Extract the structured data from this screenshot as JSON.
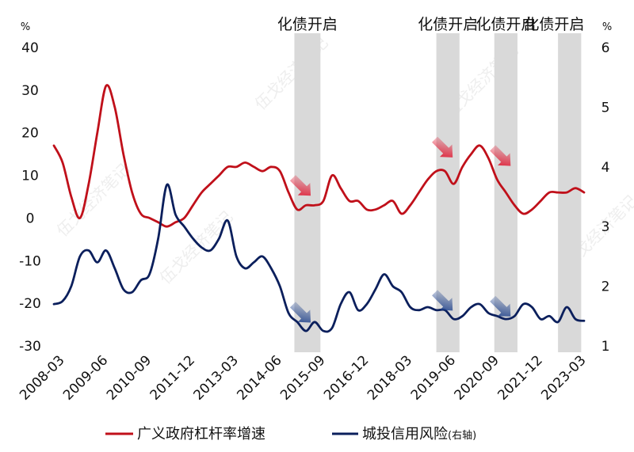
{
  "chart_data": {
    "type": "line",
    "left_axis": {
      "unit": "%",
      "ylim": [
        -30,
        40
      ],
      "ticks": [
        40,
        30,
        20,
        10,
        0,
        -10,
        -20,
        -30
      ]
    },
    "right_axis": {
      "unit": "%",
      "ylim": [
        1,
        6
      ],
      "ticks": [
        6,
        5,
        4,
        3,
        2,
        1
      ]
    },
    "x_ticks": [
      "2008-03",
      "2009-06",
      "2010-09",
      "2011-12",
      "2013-03",
      "2014-06",
      "2015-09",
      "2016-12",
      "2018-03",
      "2019-06",
      "2020-09",
      "2021-12",
      "2023-03"
    ],
    "x_range": [
      "2008-03",
      "2023-09"
    ],
    "series": [
      {
        "name": "广义政府杠杆率增速",
        "axis": "left",
        "color": "#c0101a",
        "points": [
          [
            "2008-03",
            17
          ],
          [
            "2008-06",
            13
          ],
          [
            "2008-09",
            5
          ],
          [
            "2008-12",
            0
          ],
          [
            "2009-03",
            8
          ],
          [
            "2009-06",
            20
          ],
          [
            "2009-09",
            31
          ],
          [
            "2009-12",
            26
          ],
          [
            "2010-03",
            15
          ],
          [
            "2010-06",
            6
          ],
          [
            "2010-09",
            1
          ],
          [
            "2010-12",
            0
          ],
          [
            "2011-03",
            -1
          ],
          [
            "2011-06",
            -2
          ],
          [
            "2011-09",
            -1
          ],
          [
            "2011-12",
            0
          ],
          [
            "2012-03",
            3
          ],
          [
            "2012-06",
            6
          ],
          [
            "2012-09",
            8
          ],
          [
            "2012-12",
            10
          ],
          [
            "2013-03",
            12
          ],
          [
            "2013-06",
            12
          ],
          [
            "2013-09",
            13
          ],
          [
            "2013-12",
            12
          ],
          [
            "2014-03",
            11
          ],
          [
            "2014-06",
            12
          ],
          [
            "2014-09",
            11
          ],
          [
            "2014-12",
            6
          ],
          [
            "2015-03",
            2
          ],
          [
            "2015-06",
            3
          ],
          [
            "2015-09",
            3
          ],
          [
            "2015-12",
            4
          ],
          [
            "2016-03",
            10
          ],
          [
            "2016-06",
            7
          ],
          [
            "2016-09",
            4
          ],
          [
            "2016-12",
            4
          ],
          [
            "2017-03",
            2
          ],
          [
            "2017-06",
            2
          ],
          [
            "2017-09",
            3
          ],
          [
            "2017-12",
            4
          ],
          [
            "2018-03",
            1
          ],
          [
            "2018-06",
            3
          ],
          [
            "2018-09",
            6
          ],
          [
            "2018-12",
            9
          ],
          [
            "2019-03",
            11
          ],
          [
            "2019-06",
            11
          ],
          [
            "2019-09",
            8
          ],
          [
            "2019-12",
            12
          ],
          [
            "2020-03",
            15
          ],
          [
            "2020-06",
            17
          ],
          [
            "2020-09",
            14
          ],
          [
            "2020-12",
            9
          ],
          [
            "2021-03",
            6
          ],
          [
            "2021-06",
            3
          ],
          [
            "2021-09",
            1
          ],
          [
            "2021-12",
            2
          ],
          [
            "2022-03",
            4
          ],
          [
            "2022-06",
            6
          ],
          [
            "2022-09",
            6
          ],
          [
            "2022-12",
            6
          ],
          [
            "2023-03",
            7
          ],
          [
            "2023-06",
            6
          ]
        ]
      },
      {
        "name": "城投信用风险",
        "axis_note": "(右轴)",
        "axis": "right",
        "color": "#0b1f5c",
        "points": [
          [
            "2008-03",
            1.7
          ],
          [
            "2008-06",
            1.75
          ],
          [
            "2008-09",
            2.0
          ],
          [
            "2008-12",
            2.5
          ],
          [
            "2009-03",
            2.6
          ],
          [
            "2009-06",
            2.4
          ],
          [
            "2009-09",
            2.6
          ],
          [
            "2009-12",
            2.3
          ],
          [
            "2010-03",
            1.95
          ],
          [
            "2010-06",
            1.9
          ],
          [
            "2010-09",
            2.1
          ],
          [
            "2010-12",
            2.2
          ],
          [
            "2011-03",
            2.8
          ],
          [
            "2011-06",
            3.7
          ],
          [
            "2011-09",
            3.2
          ],
          [
            "2011-12",
            3.0
          ],
          [
            "2012-03",
            2.8
          ],
          [
            "2012-06",
            2.65
          ],
          [
            "2012-09",
            2.6
          ],
          [
            "2012-12",
            2.8
          ],
          [
            "2013-03",
            3.1
          ],
          [
            "2013-06",
            2.5
          ],
          [
            "2013-09",
            2.3
          ],
          [
            "2013-12",
            2.4
          ],
          [
            "2014-03",
            2.5
          ],
          [
            "2014-06",
            2.3
          ],
          [
            "2014-09",
            2.0
          ],
          [
            "2014-12",
            1.55
          ],
          [
            "2015-03",
            1.4
          ],
          [
            "2015-06",
            1.25
          ],
          [
            "2015-09",
            1.4
          ],
          [
            "2015-12",
            1.25
          ],
          [
            "2016-03",
            1.3
          ],
          [
            "2016-06",
            1.7
          ],
          [
            "2016-09",
            1.9
          ],
          [
            "2016-12",
            1.6
          ],
          [
            "2017-03",
            1.7
          ],
          [
            "2017-06",
            1.95
          ],
          [
            "2017-09",
            2.2
          ],
          [
            "2017-12",
            2.0
          ],
          [
            "2018-03",
            1.9
          ],
          [
            "2018-06",
            1.65
          ],
          [
            "2018-09",
            1.6
          ],
          [
            "2018-12",
            1.65
          ],
          [
            "2019-03",
            1.6
          ],
          [
            "2019-06",
            1.6
          ],
          [
            "2019-09",
            1.45
          ],
          [
            "2019-12",
            1.5
          ],
          [
            "2020-03",
            1.65
          ],
          [
            "2020-06",
            1.7
          ],
          [
            "2020-09",
            1.55
          ],
          [
            "2020-12",
            1.5
          ],
          [
            "2021-03",
            1.45
          ],
          [
            "2021-06",
            1.5
          ],
          [
            "2021-09",
            1.7
          ],
          [
            "2021-12",
            1.65
          ],
          [
            "2022-03",
            1.45
          ],
          [
            "2022-06",
            1.5
          ],
          [
            "2022-09",
            1.4
          ],
          [
            "2022-12",
            1.65
          ],
          [
            "2023-03",
            1.45
          ],
          [
            "2023-06",
            1.42
          ]
        ]
      }
    ],
    "shaded_periods": [
      {
        "start": "2015-02",
        "end": "2015-11",
        "label": "化债开启"
      },
      {
        "start": "2019-03",
        "end": "2019-11",
        "label": "化债开启"
      },
      {
        "start": "2020-11",
        "end": "2021-07",
        "label": "化债开启"
      },
      {
        "start": "2022-09",
        "end": "2023-05",
        "label": "化债开启"
      }
    ],
    "legend_position": "bottom",
    "watermark": "伍戈经济笔记"
  }
}
